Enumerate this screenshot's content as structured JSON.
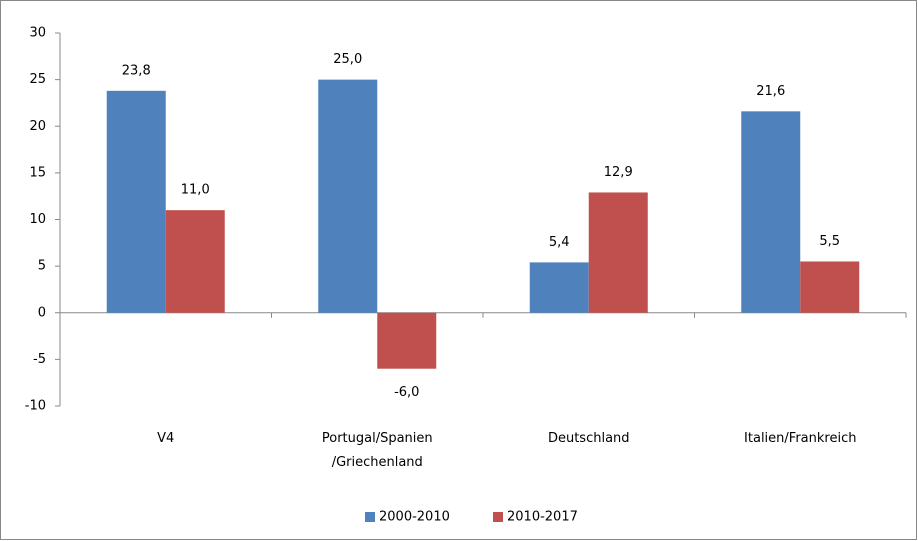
{
  "chart_data": {
    "type": "bar",
    "categories": [
      "V4",
      "Portugal/Spanien\n/Griechenland",
      "Deutschland",
      "Italien/Frankreich"
    ],
    "series": [
      {
        "name": "2000-2010",
        "color": "#4f81bd",
        "values": [
          23.8,
          25.0,
          5.4,
          21.6
        ],
        "value_labels": [
          "23,8",
          "25,0",
          "5,4",
          "21,6"
        ]
      },
      {
        "name": "2010-2017",
        "color": "#c0504d",
        "values": [
          11.0,
          -6.0,
          12.9,
          5.5
        ],
        "value_labels": [
          "11,0",
          "-6,0",
          "12,9",
          "5,5"
        ]
      }
    ],
    "ylim": [
      -10,
      30
    ],
    "yticks": [
      -10,
      -5,
      0,
      5,
      10,
      15,
      20,
      25,
      30
    ],
    "grid": false,
    "legend": "bottom"
  }
}
